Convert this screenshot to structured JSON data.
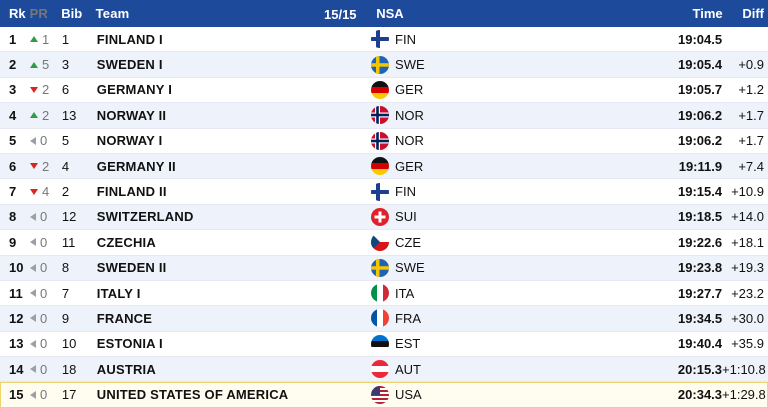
{
  "header": {
    "rank": "Rk",
    "pr": "PR",
    "bib": "Bib",
    "team": "Team",
    "count": "15/15",
    "nsa": "NSA",
    "time": "Time",
    "diff": "Diff"
  },
  "colors": {
    "header_bg": "#1e4a9c",
    "arrow_up": "#2e9e46",
    "arrow_down": "#d22222",
    "arrow_same": "#9aa0a8"
  },
  "rows": [
    {
      "rank": "1",
      "trend": "up",
      "pr": "1",
      "bib": "1",
      "team": "FINLAND I",
      "nsa": "FIN",
      "time": "19:04.5",
      "diff": ""
    },
    {
      "rank": "2",
      "trend": "up",
      "pr": "5",
      "bib": "3",
      "team": "SWEDEN I",
      "nsa": "SWE",
      "time": "19:05.4",
      "diff": "+0.9"
    },
    {
      "rank": "3",
      "trend": "down",
      "pr": "2",
      "bib": "6",
      "team": "GERMANY I",
      "nsa": "GER",
      "time": "19:05.7",
      "diff": "+1.2"
    },
    {
      "rank": "4",
      "trend": "up",
      "pr": "2",
      "bib": "13",
      "team": "NORWAY II",
      "nsa": "NOR",
      "time": "19:06.2",
      "diff": "+1.7"
    },
    {
      "rank": "5",
      "trend": "same",
      "pr": "0",
      "bib": "5",
      "team": "NORWAY I",
      "nsa": "NOR",
      "time": "19:06.2",
      "diff": "+1.7"
    },
    {
      "rank": "6",
      "trend": "down",
      "pr": "2",
      "bib": "4",
      "team": "GERMANY II",
      "nsa": "GER",
      "time": "19:11.9",
      "diff": "+7.4"
    },
    {
      "rank": "7",
      "trend": "down",
      "pr": "4",
      "bib": "2",
      "team": "FINLAND II",
      "nsa": "FIN",
      "time": "19:15.4",
      "diff": "+10.9"
    },
    {
      "rank": "8",
      "trend": "same",
      "pr": "0",
      "bib": "12",
      "team": "SWITZERLAND",
      "nsa": "SUI",
      "time": "19:18.5",
      "diff": "+14.0"
    },
    {
      "rank": "9",
      "trend": "same",
      "pr": "0",
      "bib": "11",
      "team": "CZECHIA",
      "nsa": "CZE",
      "time": "19:22.6",
      "diff": "+18.1"
    },
    {
      "rank": "10",
      "trend": "same",
      "pr": "0",
      "bib": "8",
      "team": "SWEDEN II",
      "nsa": "SWE",
      "time": "19:23.8",
      "diff": "+19.3"
    },
    {
      "rank": "11",
      "trend": "same",
      "pr": "0",
      "bib": "7",
      "team": "ITALY I",
      "nsa": "ITA",
      "time": "19:27.7",
      "diff": "+23.2"
    },
    {
      "rank": "12",
      "trend": "same",
      "pr": "0",
      "bib": "9",
      "team": "FRANCE",
      "nsa": "FRA",
      "time": "19:34.5",
      "diff": "+30.0"
    },
    {
      "rank": "13",
      "trend": "same",
      "pr": "0",
      "bib": "10",
      "team": "ESTONIA I",
      "nsa": "EST",
      "time": "19:40.4",
      "diff": "+35.9"
    },
    {
      "rank": "14",
      "trend": "same",
      "pr": "0",
      "bib": "18",
      "team": "AUSTRIA",
      "nsa": "AUT",
      "time": "20:15.3",
      "diff": "+1:10.8"
    },
    {
      "rank": "15",
      "trend": "same",
      "pr": "0",
      "bib": "17",
      "team": "UNITED STATES OF AMERICA",
      "nsa": "USA",
      "time": "20:34.3",
      "diff": "+1:29.8"
    }
  ]
}
